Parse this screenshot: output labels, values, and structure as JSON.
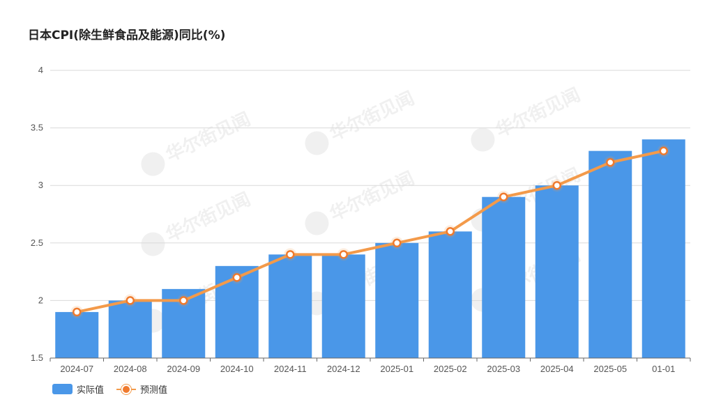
{
  "chart_data": {
    "type": "bar",
    "title": "日本CPI(除生鲜食品及能源)同比(%)",
    "categories": [
      "2024-07",
      "2024-08",
      "2024-09",
      "2024-10",
      "2024-11",
      "2024-12",
      "2025-01",
      "2025-02",
      "2025-03",
      "2025-04",
      "2025-05",
      "01-01"
    ],
    "series": [
      {
        "name": "实际值",
        "type": "bar",
        "color": "#4a97e8",
        "values": [
          1.9,
          2.0,
          2.1,
          2.3,
          2.4,
          2.4,
          2.5,
          2.6,
          2.9,
          3.0,
          3.3,
          3.4
        ]
      },
      {
        "name": "预测值",
        "type": "line",
        "color": "#f39a4a",
        "values": [
          1.9,
          2.0,
          2.0,
          2.2,
          2.4,
          2.4,
          2.5,
          2.6,
          2.9,
          3.0,
          3.2,
          3.3
        ]
      }
    ],
    "ylim": [
      1.5,
      4
    ],
    "yticks": [
      "1.5",
      "2",
      "2.5",
      "3",
      "3.5",
      "4"
    ],
    "grid": true,
    "legend_position": "bottom-left",
    "watermark": "华尔街见闻"
  }
}
